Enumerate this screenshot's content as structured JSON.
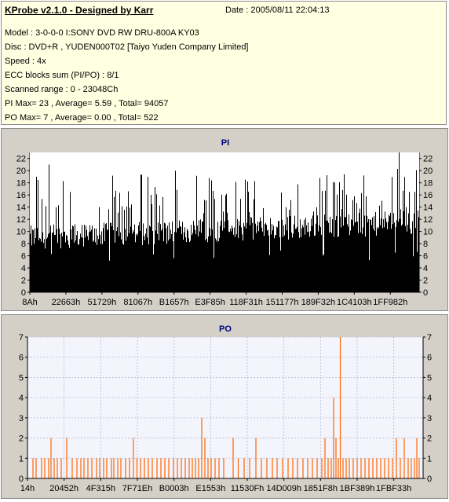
{
  "header": {
    "title": "KProbe v2.1.0 - Designed by Karr",
    "date": "Date : 2005/08/11 22:04:13",
    "lines": [
      "Model : 3-0-0-0 I:SONY    DVD RW DRU-800A  KY03",
      "Disc : DVD+R , YUDEN000T02 [Taiyo Yuden Company Limited]",
      "Speed : 4x",
      "ECC blocks sum (PI/PO) : 8/1",
      "Scanned range : 0 - 23048Ch",
      "PI Max= 23 , Average= 5.59 , Total= 94057",
      "PO Max= 7 , Average= 0.00 , Total= 522"
    ]
  },
  "colors": {
    "pi_bar": "#000000",
    "po_bar": "#ff6600",
    "plot_bg": "#f4f4fc",
    "panel_bg": "#d4d0c8",
    "title": "#00007f"
  },
  "chart_data": [
    {
      "type": "bar",
      "title": "PI",
      "x_ticks": [
        "8Ah",
        "22663h",
        "51729h",
        "81067h",
        "B1657h",
        "E3F85h",
        "118F31h",
        "151177h",
        "189F32h",
        "1C4103h",
        "1FF982h"
      ],
      "ylim": [
        0,
        23
      ],
      "y_ticks": [
        0,
        2,
        4,
        6,
        8,
        10,
        12,
        14,
        16,
        18,
        20,
        22
      ],
      "max": 23,
      "average": 5.59,
      "grid": false,
      "description": "Dense black bars; baseline level rising slowly from about 9 at start to about 11-12 at end, spikes 14-21, maximum 23 near the end"
    },
    {
      "type": "bar",
      "title": "PO",
      "x_ticks": [
        "14h",
        "20452h",
        "4F315h",
        "7F71Eh",
        "B0003h",
        "E1553h",
        "11530Fh",
        "14D009h",
        "1851F8h",
        "1BF389h",
        "1FBF33h"
      ],
      "ylim": [
        0,
        7
      ],
      "y_ticks": [
        0,
        1,
        2,
        3,
        4,
        5,
        6,
        7
      ],
      "max": 7,
      "grid": true,
      "spikes": [
        {
          "pos": 0.01,
          "v": 1
        },
        {
          "pos": 0.018,
          "v": 1
        },
        {
          "pos": 0.032,
          "v": 1
        },
        {
          "pos": 0.04,
          "v": 1
        },
        {
          "pos": 0.05,
          "v": 1
        },
        {
          "pos": 0.056,
          "v": 2
        },
        {
          "pos": 0.064,
          "v": 1
        },
        {
          "pos": 0.072,
          "v": 1
        },
        {
          "pos": 0.082,
          "v": 1
        },
        {
          "pos": 0.096,
          "v": 2
        },
        {
          "pos": 0.11,
          "v": 1
        },
        {
          "pos": 0.122,
          "v": 1
        },
        {
          "pos": 0.132,
          "v": 1
        },
        {
          "pos": 0.14,
          "v": 1
        },
        {
          "pos": 0.15,
          "v": 1
        },
        {
          "pos": 0.16,
          "v": 1
        },
        {
          "pos": 0.172,
          "v": 1
        },
        {
          "pos": 0.18,
          "v": 1
        },
        {
          "pos": 0.19,
          "v": 1
        },
        {
          "pos": 0.198,
          "v": 1
        },
        {
          "pos": 0.21,
          "v": 1
        },
        {
          "pos": 0.216,
          "v": 1
        },
        {
          "pos": 0.226,
          "v": 1
        },
        {
          "pos": 0.234,
          "v": 1
        },
        {
          "pos": 0.246,
          "v": 1
        },
        {
          "pos": 0.256,
          "v": 1
        },
        {
          "pos": 0.266,
          "v": 2
        },
        {
          "pos": 0.275,
          "v": 1
        },
        {
          "pos": 0.284,
          "v": 1
        },
        {
          "pos": 0.294,
          "v": 1
        },
        {
          "pos": 0.304,
          "v": 1
        },
        {
          "pos": 0.314,
          "v": 1
        },
        {
          "pos": 0.326,
          "v": 1
        },
        {
          "pos": 0.336,
          "v": 1
        },
        {
          "pos": 0.346,
          "v": 1
        },
        {
          "pos": 0.356,
          "v": 1
        },
        {
          "pos": 0.368,
          "v": 1
        },
        {
          "pos": 0.378,
          "v": 1
        },
        {
          "pos": 0.388,
          "v": 1
        },
        {
          "pos": 0.398,
          "v": 1
        },
        {
          "pos": 0.408,
          "v": 1
        },
        {
          "pos": 0.416,
          "v": 1
        },
        {
          "pos": 0.424,
          "v": 1
        },
        {
          "pos": 0.432,
          "v": 1
        },
        {
          "pos": 0.44,
          "v": 3
        },
        {
          "pos": 0.448,
          "v": 2
        },
        {
          "pos": 0.456,
          "v": 1
        },
        {
          "pos": 0.464,
          "v": 1
        },
        {
          "pos": 0.474,
          "v": 1
        },
        {
          "pos": 0.484,
          "v": 1
        },
        {
          "pos": 0.496,
          "v": 1
        },
        {
          "pos": 0.52,
          "v": 2
        },
        {
          "pos": 0.533,
          "v": 1
        },
        {
          "pos": 0.548,
          "v": 1
        },
        {
          "pos": 0.562,
          "v": 1
        },
        {
          "pos": 0.578,
          "v": 2
        },
        {
          "pos": 0.592,
          "v": 1
        },
        {
          "pos": 0.606,
          "v": 1
        },
        {
          "pos": 0.62,
          "v": 1
        },
        {
          "pos": 0.632,
          "v": 1
        },
        {
          "pos": 0.646,
          "v": 1
        },
        {
          "pos": 0.66,
          "v": 1
        },
        {
          "pos": 0.672,
          "v": 1
        },
        {
          "pos": 0.684,
          "v": 1
        },
        {
          "pos": 0.698,
          "v": 1
        },
        {
          "pos": 0.71,
          "v": 1
        },
        {
          "pos": 0.722,
          "v": 1
        },
        {
          "pos": 0.734,
          "v": 1
        },
        {
          "pos": 0.746,
          "v": 1
        },
        {
          "pos": 0.754,
          "v": 2
        },
        {
          "pos": 0.762,
          "v": 1
        },
        {
          "pos": 0.77,
          "v": 1
        },
        {
          "pos": 0.776,
          "v": 4
        },
        {
          "pos": 0.782,
          "v": 2
        },
        {
          "pos": 0.788,
          "v": 1
        },
        {
          "pos": 0.793,
          "v": 7
        },
        {
          "pos": 0.8,
          "v": 1
        },
        {
          "pos": 0.808,
          "v": 1
        },
        {
          "pos": 0.816,
          "v": 1
        },
        {
          "pos": 0.826,
          "v": 1
        },
        {
          "pos": 0.836,
          "v": 1
        },
        {
          "pos": 0.846,
          "v": 1
        },
        {
          "pos": 0.856,
          "v": 1
        },
        {
          "pos": 0.866,
          "v": 1
        },
        {
          "pos": 0.876,
          "v": 1
        },
        {
          "pos": 0.886,
          "v": 1
        },
        {
          "pos": 0.896,
          "v": 1
        },
        {
          "pos": 0.906,
          "v": 1
        },
        {
          "pos": 0.916,
          "v": 1
        },
        {
          "pos": 0.926,
          "v": 1
        },
        {
          "pos": 0.936,
          "v": 2
        },
        {
          "pos": 0.946,
          "v": 1
        },
        {
          "pos": 0.956,
          "v": 2
        },
        {
          "pos": 0.966,
          "v": 1
        },
        {
          "pos": 0.974,
          "v": 1
        },
        {
          "pos": 0.982,
          "v": 1
        },
        {
          "pos": 0.988,
          "v": 2
        },
        {
          "pos": 0.994,
          "v": 1
        }
      ]
    }
  ]
}
